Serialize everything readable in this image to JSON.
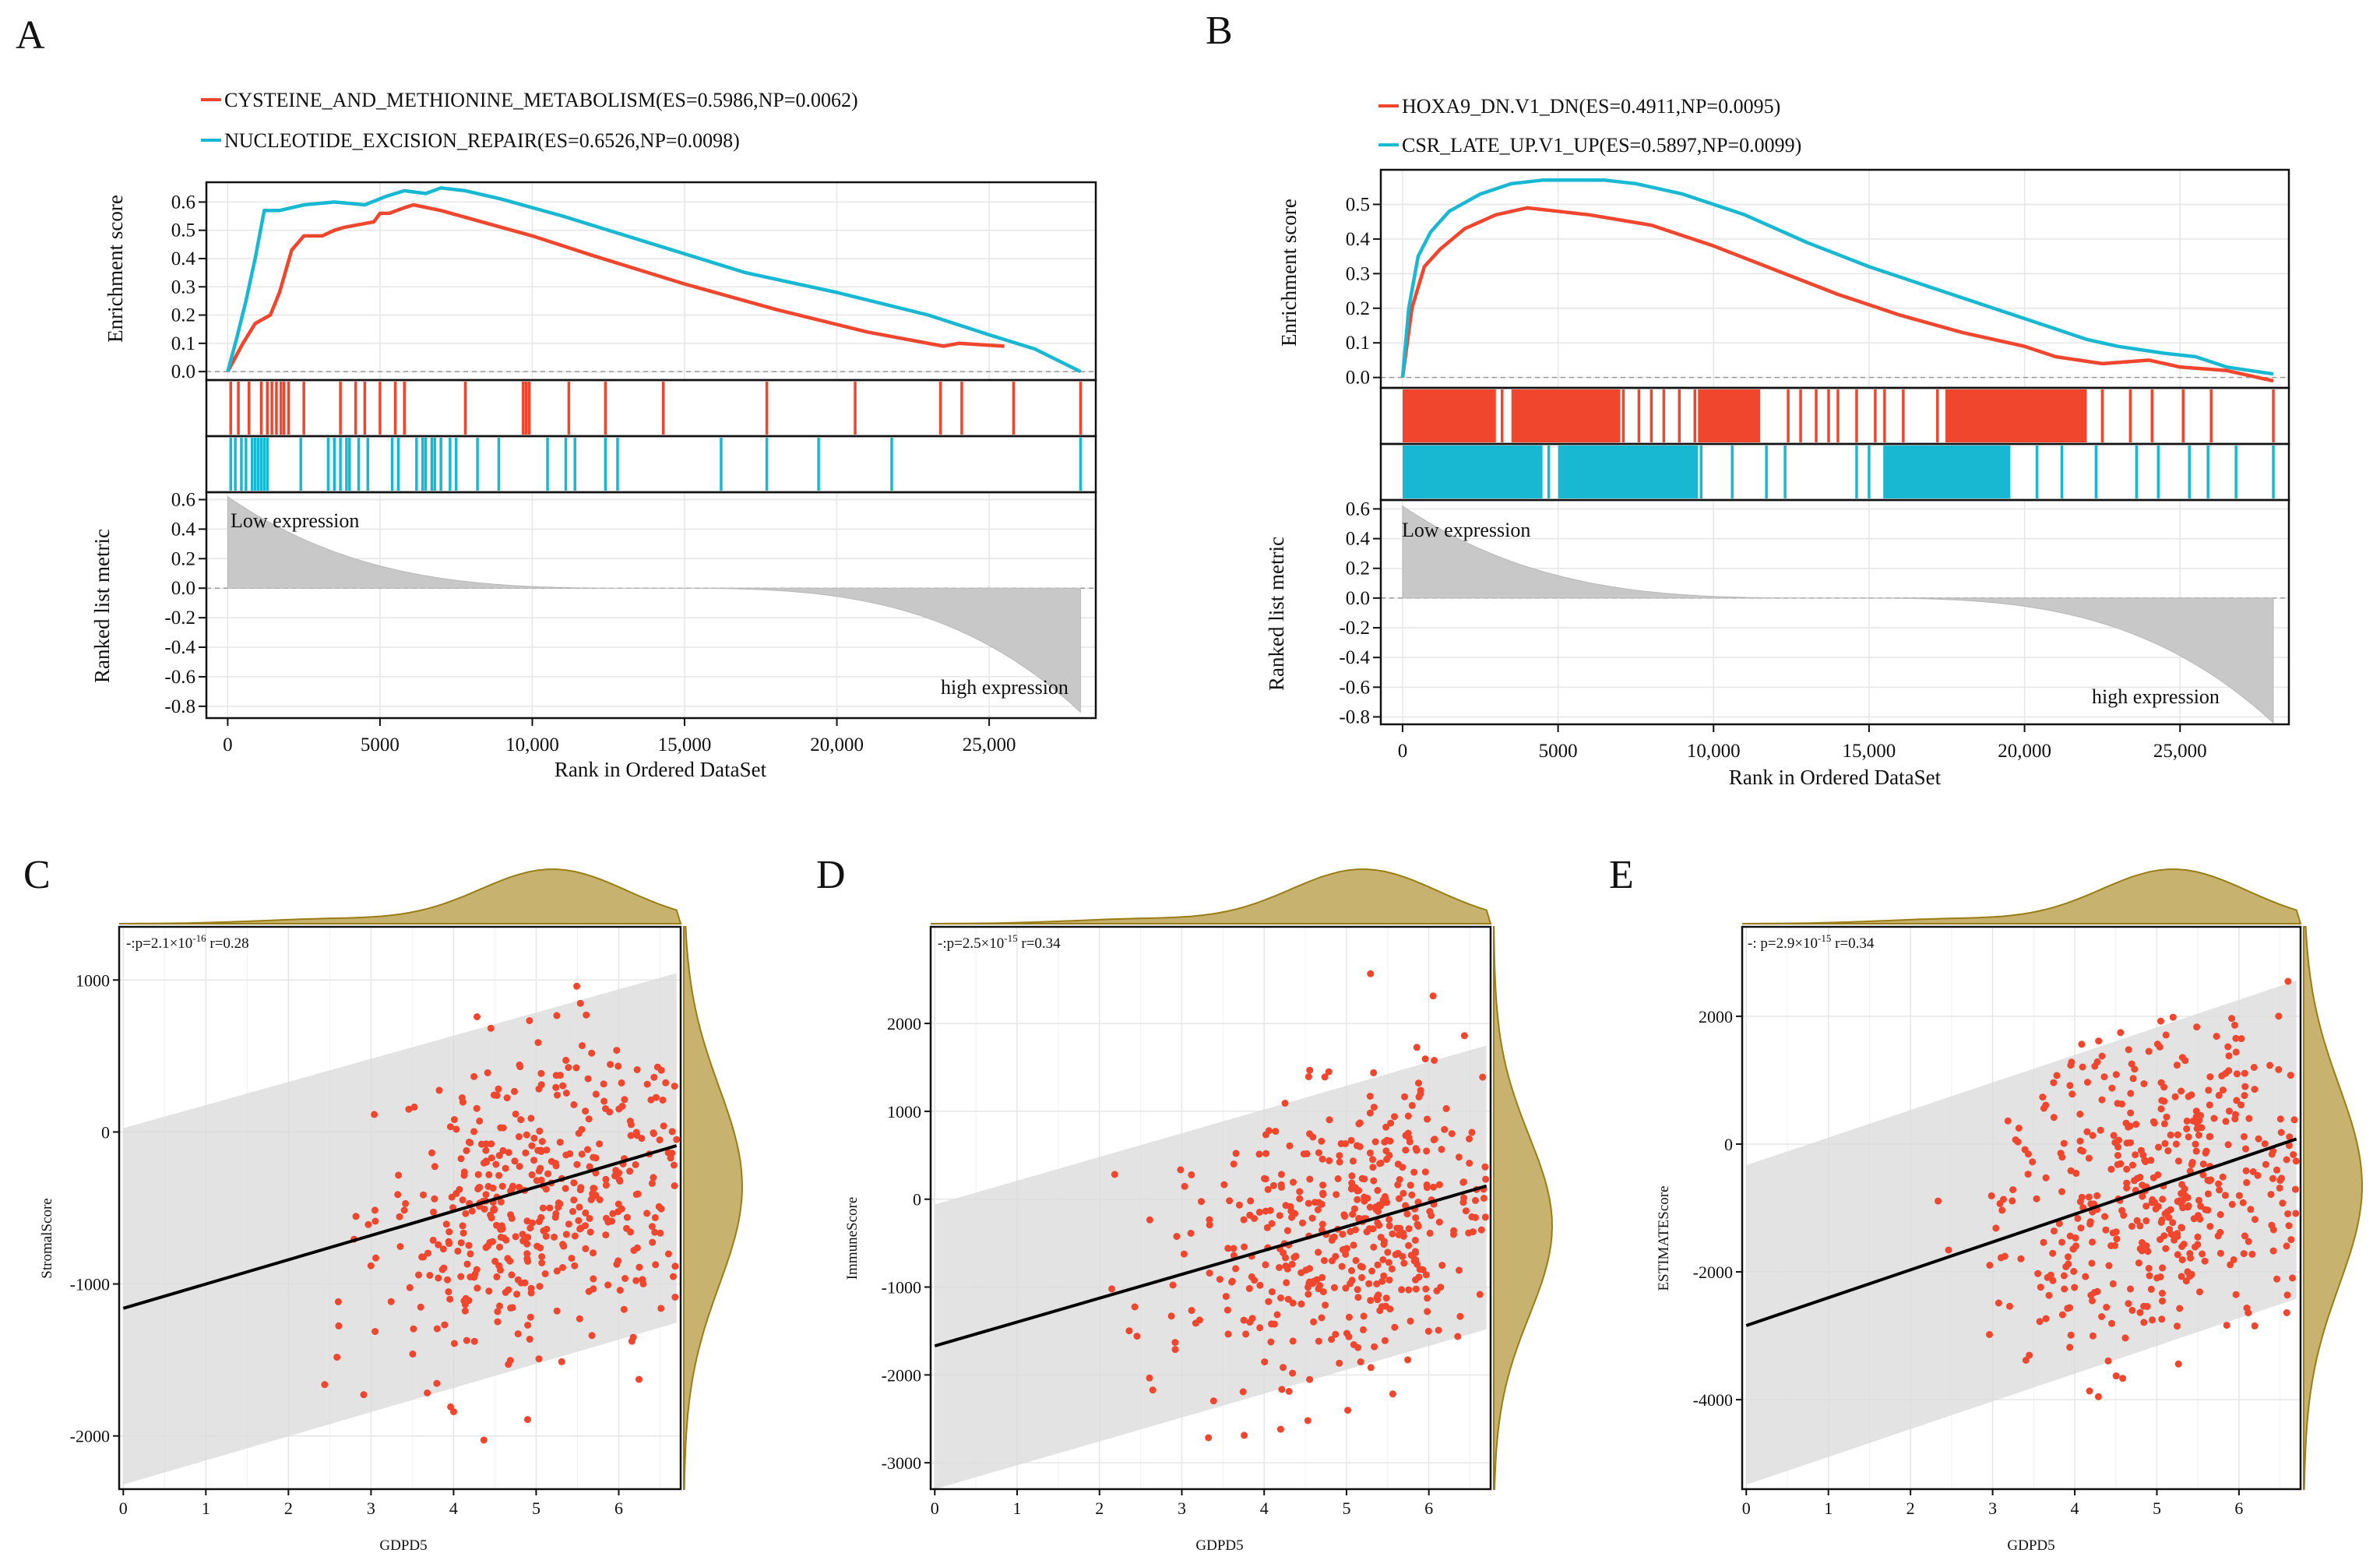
{
  "panels": {
    "A": {
      "label": "A"
    },
    "B": {
      "label": "B"
    },
    "C": {
      "label": "C"
    },
    "D": {
      "label": "D"
    },
    "E": {
      "label": "E"
    }
  },
  "colors": {
    "red": "#f0462e",
    "cyan": "#19b8d2",
    "density": "#c8b270",
    "density_edge": "#9a7d14",
    "band": "#d9d9d9",
    "grid": "#e6e6e6"
  },
  "chart_data": [
    {
      "id": "A",
      "type": "line",
      "title": "",
      "xlabel": "Rank in Ordered DataSet",
      "ylabel_top": "Enrichment score",
      "ylabel_bottom": "Ranked list metric",
      "xlim": [
        -700,
        28500
      ],
      "x_ticks": [
        0,
        5000,
        10000,
        15000,
        20000,
        25000
      ],
      "x_tick_labels": [
        "0",
        "5000",
        "10,000",
        "15,000",
        "20,000",
        "25,000"
      ],
      "es_ylim": [
        -0.03,
        0.67
      ],
      "es_ticks": [
        "0.0",
        "0.1",
        "0.2",
        "0.3",
        "0.4",
        "0.5",
        "0.6"
      ],
      "metric_ylim": [
        -0.88,
        0.65
      ],
      "metric_ticks": [
        "0.6",
        "0.4",
        "0.2",
        "0.0",
        "-0.2",
        "-0.4",
        "-0.6",
        "-0.8"
      ],
      "low_label": "Low expression",
      "high_label": "high expression",
      "series": [
        {
          "name": "CYSTEINE_AND_METHIONINE_METABOLISM(ES=0.5986,NP=0.0062)",
          "color": "#f0462e",
          "x": [
            0,
            500,
            900,
            1400,
            1700,
            2100,
            2500,
            3100,
            3500,
            3800,
            4800,
            5000,
            5300,
            5800,
            6100,
            7000,
            8000,
            9000,
            10000,
            12000,
            15000,
            18000,
            21000,
            23500,
            24000,
            25500
          ],
          "y": [
            0.0,
            0.1,
            0.17,
            0.2,
            0.28,
            0.43,
            0.48,
            0.48,
            0.5,
            0.51,
            0.53,
            0.56,
            0.56,
            0.58,
            0.59,
            0.57,
            0.54,
            0.51,
            0.48,
            0.41,
            0.31,
            0.22,
            0.14,
            0.09,
            0.1,
            0.09
          ],
          "hits": [
            100,
            350,
            700,
            1100,
            1300,
            1450,
            1600,
            1750,
            1850,
            2000,
            2500,
            3700,
            4200,
            4500,
            5000,
            5500,
            5800,
            7800,
            9700,
            9800,
            9900,
            11200,
            12400,
            14300,
            17700,
            20600,
            23400,
            24100,
            25800,
            28000
          ]
        },
        {
          "name": "NUCLEOTIDE_EXCISION_REPAIR(ES=0.6526,NP=0.0098)",
          "color": "#19b8d2",
          "x": [
            0,
            300,
            600,
            900,
            1200,
            1700,
            2500,
            3500,
            4500,
            5200,
            5800,
            6500,
            7000,
            7800,
            9000,
            11000,
            14000,
            17000,
            20000,
            23000,
            25000,
            26500,
            28000
          ],
          "y": [
            0.0,
            0.12,
            0.25,
            0.4,
            0.57,
            0.57,
            0.59,
            0.6,
            0.59,
            0.62,
            0.64,
            0.63,
            0.65,
            0.64,
            0.61,
            0.55,
            0.45,
            0.35,
            0.28,
            0.2,
            0.13,
            0.08,
            0.0
          ],
          "hits": [
            100,
            250,
            450,
            600,
            800,
            900,
            1000,
            1100,
            1200,
            1300,
            2400,
            3300,
            3500,
            3700,
            3900,
            4000,
            4300,
            4600,
            5400,
            5600,
            6200,
            6400,
            6500,
            6700,
            6800,
            7000,
            7300,
            7500,
            8200,
            8900,
            10500,
            11100,
            11400,
            12400,
            12800,
            16200,
            17700,
            19400,
            21800,
            28000
          ]
        }
      ]
    },
    {
      "id": "B",
      "type": "line",
      "title": "",
      "xlabel": "Rank in Ordered DataSet",
      "ylabel_top": "Enrichment score",
      "ylabel_bottom": "Ranked list metric",
      "xlim": [
        -700,
        28500
      ],
      "x_ticks": [
        0,
        5000,
        10000,
        15000,
        20000,
        25000
      ],
      "x_tick_labels": [
        "0",
        "5000",
        "10,000",
        "15,000",
        "20,000",
        "25,000"
      ],
      "es_ylim": [
        -0.03,
        0.6
      ],
      "es_ticks": [
        "0.0",
        "0.1",
        "0.2",
        "0.3",
        "0.4",
        "0.5"
      ],
      "metric_ylim": [
        -0.85,
        0.66
      ],
      "metric_ticks": [
        "0.6",
        "0.4",
        "0.2",
        "0.0",
        "-0.2",
        "-0.4",
        "-0.6",
        "-0.8"
      ],
      "low_label": "Low expression",
      "high_label": "high expression",
      "series": [
        {
          "name": "HOXA9_DN.V1_DN(ES=0.4911,NP=0.0095)",
          "color": "#f0462e",
          "x": [
            0,
            300,
            700,
            1200,
            2000,
            3000,
            4000,
            5000,
            6000,
            8000,
            10000,
            12000,
            14000,
            16000,
            18000,
            20000,
            21000,
            22500,
            24000,
            25000,
            26500,
            28000
          ],
          "y": [
            0.0,
            0.2,
            0.32,
            0.37,
            0.43,
            0.47,
            0.49,
            0.48,
            0.47,
            0.44,
            0.38,
            0.31,
            0.24,
            0.18,
            0.13,
            0.09,
            0.06,
            0.04,
            0.05,
            0.03,
            0.02,
            -0.01
          ],
          "hits_dense": [
            [
              0,
              3000
            ],
            [
              3500,
              7000
            ],
            [
              9500,
              11500
            ],
            [
              17500,
              22000
            ]
          ],
          "hits": [
            100,
            400,
            800,
            1200,
            1600,
            2000,
            2400,
            2800,
            3200,
            3600,
            4000,
            4300,
            4700,
            5100,
            5500,
            5900,
            6300,
            6700,
            7100,
            7600,
            8000,
            8400,
            8900,
            9400,
            9700,
            10000,
            10400,
            10700,
            11000,
            11400,
            12400,
            12800,
            13300,
            13700,
            14000,
            14600,
            15200,
            15500,
            16100,
            17200,
            17500,
            17800,
            18100,
            18300,
            18600,
            18900,
            19200,
            19500,
            19800,
            20100,
            20400,
            20700,
            21000,
            21300,
            21700,
            22500,
            23400,
            24100,
            25100,
            26000,
            28000
          ]
        },
        {
          "name": "CSR_LATE_UP.V1_UP(ES=0.5897,NP=0.0099)",
          "color": "#19b8d2",
          "x": [
            0,
            200,
            500,
            900,
            1500,
            2500,
            3500,
            4500,
            5500,
            6500,
            7500,
            9000,
            11000,
            13000,
            15000,
            17000,
            19000,
            21000,
            22000,
            23000,
            24500,
            25500,
            26500,
            28000
          ],
          "y": [
            0.0,
            0.2,
            0.35,
            0.42,
            0.48,
            0.53,
            0.56,
            0.57,
            0.57,
            0.57,
            0.56,
            0.53,
            0.47,
            0.39,
            0.32,
            0.26,
            0.2,
            0.14,
            0.11,
            0.09,
            0.07,
            0.06,
            0.03,
            0.01
          ],
          "hits_dense": [
            [
              0,
              4500
            ],
            [
              5000,
              9500
            ],
            [
              15500,
              19500
            ]
          ],
          "hits": [
            200,
            600,
            1000,
            1400,
            1800,
            2200,
            2600,
            3000,
            3400,
            3800,
            4200,
            4700,
            5200,
            5600,
            6000,
            6400,
            6800,
            7200,
            7600,
            8000,
            8400,
            8800,
            9200,
            9600,
            10600,
            11700,
            12300,
            14600,
            15000,
            15500,
            15900,
            16300,
            16700,
            17100,
            17500,
            17900,
            18300,
            18700,
            19100,
            19500,
            20400,
            21200,
            22300,
            23600,
            24300,
            25300,
            25900,
            26800,
            28000
          ]
        }
      ]
    },
    {
      "id": "C",
      "type": "scatter",
      "xlabel": "GDPD5",
      "ylabel": "StromalScore",
      "xlim": [
        -0.05,
        6.75
      ],
      "ylim": [
        -2350,
        1350
      ],
      "x_ticks": [
        "0",
        "1",
        "2",
        "3",
        "4",
        "5",
        "6"
      ],
      "y_ticks": [
        "-2000",
        "-1000",
        "0",
        "1000"
      ],
      "y_tick_values": [
        -2000,
        -1000,
        0,
        1000
      ],
      "stat": "-:p=2.1×10",
      "stat_exp": "-16",
      "stat_r": " r=0.28",
      "fit": {
        "x0": 0,
        "y0": -1160,
        "x1": 6.7,
        "y1": -90
      },
      "band": {
        "x0": 0,
        "lo0": -2320,
        "hi0": 25,
        "x1": 6.7,
        "lo1": -1255,
        "hi1": 1045
      }
    },
    {
      "id": "D",
      "type": "scatter",
      "xlabel": "GDPD5",
      "ylabel": "ImmuneScore",
      "xlim": [
        -0.05,
        6.75
      ],
      "ylim": [
        -3300,
        3100
      ],
      "x_ticks": [
        "0",
        "1",
        "2",
        "3",
        "4",
        "5",
        "6"
      ],
      "y_ticks": [
        "-3000",
        "-2000",
        "-1000",
        "0",
        "1000",
        "2000"
      ],
      "y_tick_values": [
        -3000,
        -2000,
        -1000,
        0,
        1000,
        2000
      ],
      "stat": "-:p=2.5×10",
      "stat_exp": "-15",
      "stat_r": " r=0.34",
      "fit": {
        "x0": 0,
        "y0": -1670,
        "x1": 6.7,
        "y1": 150
      },
      "band": {
        "x0": 0,
        "lo0": -3300,
        "hi0": -60,
        "x1": 6.7,
        "lo1": -1480,
        "hi1": 1750
      }
    },
    {
      "id": "E",
      "type": "scatter",
      "xlabel": "GDPD5",
      "ylabel": "ESTIMATEScore",
      "xlim": [
        -0.05,
        6.75
      ],
      "ylim": [
        -5400,
        3400
      ],
      "x_ticks": [
        "0",
        "1",
        "2",
        "3",
        "4",
        "5",
        "6"
      ],
      "y_ticks": [
        "-4000",
        "-2000",
        "0",
        "2000"
      ],
      "y_tick_values": [
        -4000,
        -2000,
        0,
        2000
      ],
      "stat": "-: p=2.9×10",
      "stat_exp": "-15",
      "stat_r": " r=0.34",
      "fit": {
        "x0": 0,
        "y0": -2840,
        "x1": 6.7,
        "y1": 80
      },
      "band": {
        "x0": 0,
        "lo0": -5330,
        "hi0": -330,
        "x1": 6.7,
        "lo1": -2420,
        "hi1": 2560
      }
    }
  ]
}
